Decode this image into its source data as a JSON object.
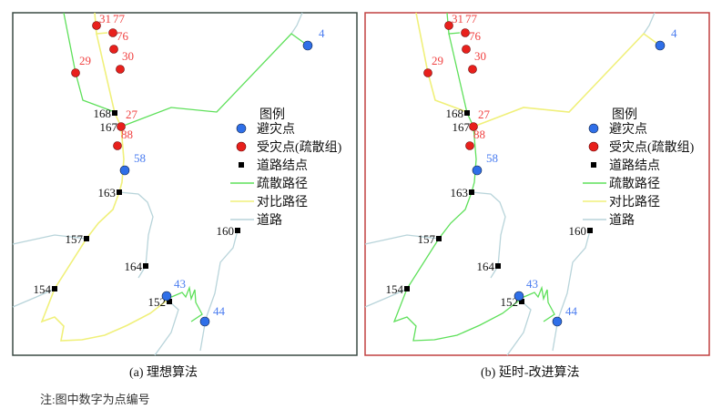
{
  "panels": [
    {
      "caption": "(a) 理想算法",
      "border": "#3a4a44",
      "evac_route": "top-right",
      "compare_route": "loop"
    },
    {
      "caption": "(b) 延时-改进算法",
      "border": "#c04040",
      "evac_route": "loop",
      "compare_route": "top-right"
    }
  ],
  "legend": {
    "title": "图例",
    "items": [
      {
        "label": "避灾点",
        "symbol": "blue-circle"
      },
      {
        "label": "受灾点(疏散组)",
        "symbol": "red-circle"
      },
      {
        "label": "道路结点",
        "symbol": "black-square"
      },
      {
        "label": "疏散路径",
        "symbol": "green-line"
      },
      {
        "label": "对比路径",
        "symbol": "yellow-line"
      },
      {
        "label": "道路",
        "symbol": "grey-line"
      }
    ]
  },
  "shelters": [
    "4",
    "58",
    "43",
    "44"
  ],
  "affected": [
    "31",
    "77",
    "76",
    "30",
    "29",
    "27",
    "88"
  ],
  "nodes": [
    "168",
    "167",
    "163",
    "157",
    "164",
    "154",
    "152",
    "160"
  ],
  "note": "注:图中数字为点编号",
  "colors": {
    "shelter": "#2f6fe8",
    "affected": "#e8201c",
    "node": "#000000",
    "evac": "#5ee05a",
    "compare": "#f0f07a",
    "road": "#b8d4da",
    "shelter_label": "#4a7cf0",
    "affected_label": "#f04040"
  }
}
